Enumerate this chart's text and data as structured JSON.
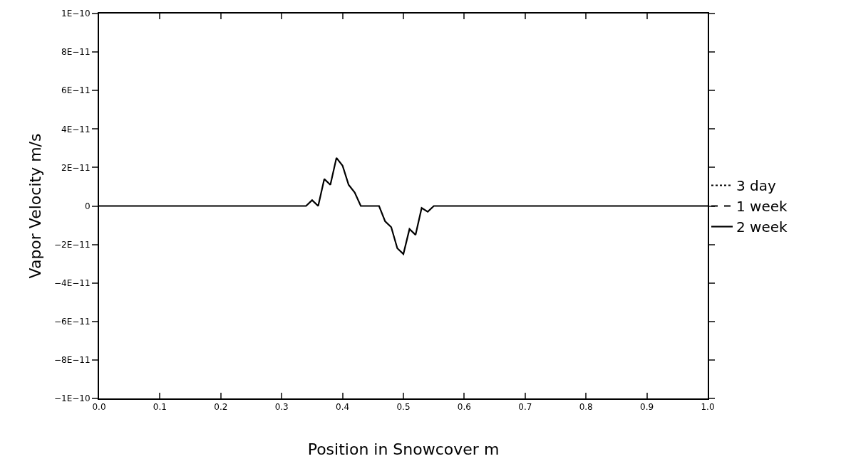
{
  "chart_data": {
    "type": "line",
    "xlabel": "Position in Snowcover m",
    "ylabel": "Vapor Velocity m/s",
    "x": [
      0,
      0.34,
      0.35,
      0.36,
      0.37,
      0.38,
      0.39,
      0.4,
      0.41,
      0.42,
      0.43,
      0.46,
      0.47,
      0.48,
      0.49,
      0.5,
      0.51,
      0.52,
      0.53,
      0.54,
      0.55,
      1.0
    ],
    "series": [
      {
        "name": "3 day",
        "color": "#000000",
        "line_style": "dotted",
        "values": [
          null,
          null,
          null,
          null,
          null,
          null,
          null,
          null,
          null,
          null,
          null,
          null,
          null,
          null,
          null,
          null,
          null,
          null,
          null,
          null,
          null,
          null
        ]
      },
      {
        "name": "1 week",
        "color": "#000000",
        "line_style": "dashed",
        "values": [
          null,
          null,
          null,
          null,
          null,
          null,
          null,
          null,
          null,
          null,
          null,
          null,
          null,
          null,
          null,
          null,
          null,
          null,
          null,
          null,
          null,
          null
        ]
      },
      {
        "name": "2 week",
        "color": "#000000",
        "line_style": "solid",
        "values": [
          0,
          0,
          3e-12,
          0,
          1.4e-11,
          1.1e-11,
          2.5e-11,
          2.1e-11,
          1.1e-11,
          7e-12,
          0,
          0,
          -8e-12,
          -1.1e-11,
          -2.2e-11,
          -2.5e-11,
          -1.2e-11,
          -1.5e-11,
          -1e-12,
          -3e-12,
          0,
          0
        ]
      }
    ],
    "xlim": [
      0,
      1
    ],
    "xticks": [
      {
        "value": 0,
        "label": "0.0"
      },
      0.1,
      0.2,
      0.3,
      0.4,
      0.5,
      0.6,
      0.7,
      0.8,
      0.9,
      {
        "value": 1,
        "label": "1.0"
      }
    ],
    "ylim": [
      -1e-10,
      1e-10
    ],
    "yticks": [
      {
        "value": -1e-10,
        "label": "−1E−10"
      },
      {
        "value": -8e-11,
        "label": "−8E−11"
      },
      {
        "value": -6e-11,
        "label": "−6E−11"
      },
      {
        "value": -4e-11,
        "label": "−4E−11"
      },
      {
        "value": -2e-11,
        "label": "−2E−11"
      },
      0,
      {
        "value": 2e-11,
        "label": "2E−11"
      },
      {
        "value": 4e-11,
        "label": "4E−11"
      },
      {
        "value": 6e-11,
        "label": "6E−11"
      },
      {
        "value": 8e-11,
        "label": "8E−11"
      },
      {
        "value": 1e-10,
        "label": "1E−10"
      }
    ],
    "grid": false,
    "legend": "right",
    "marker": "none"
  }
}
